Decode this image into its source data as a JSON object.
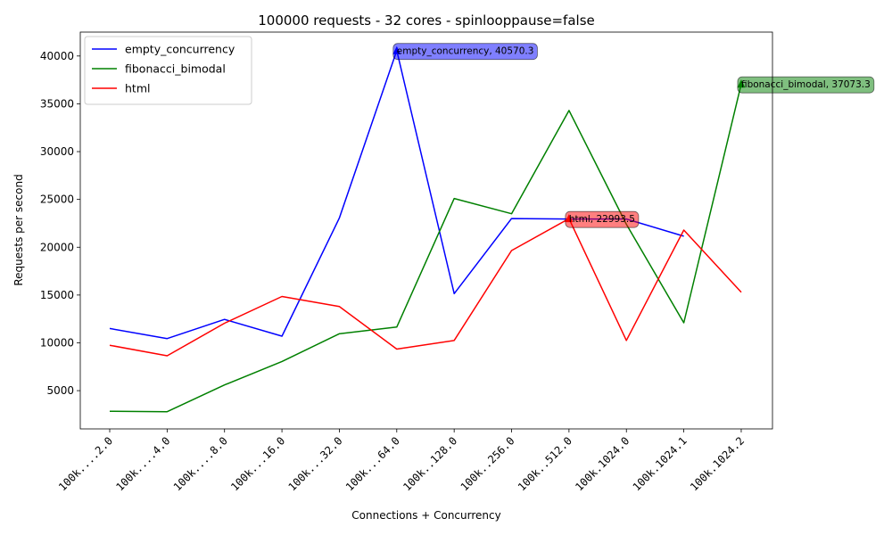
{
  "chart_data": {
    "type": "line",
    "title": "100000 requests - 32 cores - spinlooppause=false",
    "xlabel": "Connections + Concurrency",
    "ylabel": "Requests per second",
    "categories": [
      "100k....2.0",
      "100k....4.0",
      "100k....8.0",
      "100k...16.0",
      "100k...32.0",
      "100k...64.0",
      "100k..128.0",
      "100k..256.0",
      "100k..512.0",
      "100k.1024.0",
      "100k.1024.1",
      "100k.1024.2"
    ],
    "ylim": [
      1000,
      42500
    ],
    "yticks": [
      5000,
      10000,
      15000,
      20000,
      25000,
      30000,
      35000,
      40000
    ],
    "grid": false,
    "legend_position": "top-left",
    "series": [
      {
        "name": "empty_concurrency",
        "color": "#0000ff",
        "values": [
          11500,
          10450,
          12450,
          10700,
          23050,
          40570.3,
          15150,
          23000,
          22950,
          22950,
          21150,
          null
        ],
        "annotation": {
          "index": 5,
          "text": "empty_concurrency, 40570.3"
        }
      },
      {
        "name": "fibonacci_bimodal",
        "color": "#008000",
        "values": [
          2850,
          2800,
          5600,
          8050,
          10950,
          11650,
          25100,
          23500,
          34300,
          22400,
          12100,
          37073.3
        ],
        "annotation": {
          "index": 11,
          "text": "fibonacci_bimodal, 37073.3"
        }
      },
      {
        "name": "html",
        "color": "#ff0000",
        "values": [
          9750,
          8650,
          12050,
          14850,
          13800,
          9350,
          10250,
          19650,
          22993.5,
          10250,
          21800,
          15300
        ],
        "annotation": {
          "index": 8,
          "text": "html, 22993.5"
        }
      }
    ]
  }
}
